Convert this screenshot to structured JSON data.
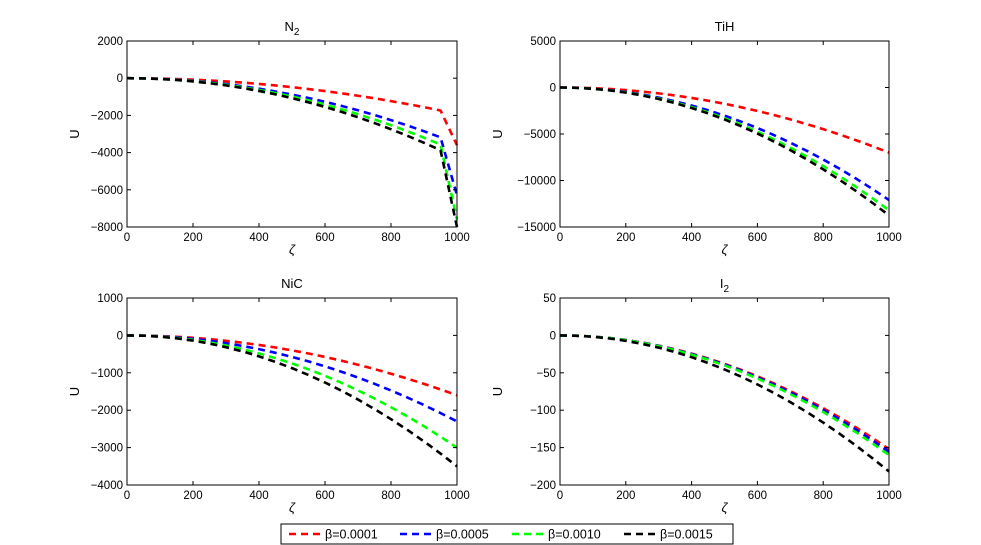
{
  "chart_data": {
    "type": "line",
    "x": [
      0,
      50,
      100,
      150,
      200,
      250,
      300,
      350,
      400,
      450,
      500,
      550,
      600,
      650,
      700,
      750,
      800,
      850,
      900,
      950,
      1000
    ],
    "legend": {
      "entries": [
        {
          "label": "β=0.0001",
          "color": "#ff0000"
        },
        {
          "label": "β=0.0005",
          "color": "#0000ff"
        },
        {
          "label": "β=0.0010",
          "color": "#00ff00"
        },
        {
          "label": "β=0.0015",
          "color": "#000000"
        }
      ],
      "placement": "bottom-center"
    },
    "panels": [
      {
        "title": "N",
        "title_subscript": "2",
        "xlabel": "ζ",
        "ylabel": "U",
        "xlim": [
          0,
          1000
        ],
        "ylim": [
          -8000,
          2000
        ],
        "xticks": [
          0,
          200,
          400,
          600,
          800,
          1000
        ],
        "yticks": [
          2000,
          0,
          -2000,
          -4000,
          -6000,
          -8000
        ],
        "ytick_labels": [
          "2000",
          "0",
          "−2000",
          "−4000",
          "−6000",
          "−8000"
        ],
        "series": [
          {
            "name": "β=0.0001",
            "values": [
              0,
              -5,
              -19,
              -43,
              -77,
              -120,
              -173,
              -236,
              -308,
              -390,
              -481,
              -582,
              -692,
              -813,
              -943,
              -1082,
              -1231,
              -1390,
              -1558,
              -1736,
              -3600
            ]
          },
          {
            "name": "β=0.0005",
            "values": [
              0,
              -9,
              -35,
              -79,
              -141,
              -220,
              -316,
              -432,
              -563,
              -714,
              -881,
              -1064,
              -1267,
              -1487,
              -1725,
              -1980,
              -2254,
              -2545,
              -2852,
              -3178,
              -6300
            ]
          },
          {
            "name": "β=0.0010",
            "values": [
              0,
              -10,
              -39,
              -89,
              -158,
              -247,
              -355,
              -484,
              -632,
              -800,
              -988,
              -1194,
              -1421,
              -1668,
              -1934,
              -2221,
              -2527,
              -2853,
              -3198,
              -3564,
              -7600
            ]
          },
          {
            "name": "β=0.0015",
            "values": [
              0,
              -11,
              -43,
              -97,
              -172,
              -268,
              -386,
              -525,
              -686,
              -868,
              -1072,
              -1297,
              -1543,
              -1811,
              -2100,
              -2411,
              -2744,
              -3097,
              -3472,
              -3869,
              -8000
            ]
          }
        ]
      },
      {
        "title": "TiH",
        "title_subscript": "",
        "xlabel": "ζ",
        "ylabel": "U",
        "xlim": [
          0,
          1000
        ],
        "ylim": [
          -15000,
          5000
        ],
        "xticks": [
          0,
          200,
          400,
          600,
          800,
          1000
        ],
        "yticks": [
          5000,
          0,
          -5000,
          -10000,
          -15000
        ],
        "ytick_labels": [
          "5000",
          "0",
          "−5000",
          "−10000",
          "−15000"
        ],
        "series": [
          {
            "name": "β=0.0001",
            "values": [
              0,
              -17,
              -70,
              -157,
              -280,
              -437,
              -630,
              -857,
              -1120,
              -1417,
              -1750,
              -2117,
              -2520,
              -2957,
              -3430,
              -3937,
              -4480,
              -5057,
              -5670,
              -6317,
              -7000
            ]
          },
          {
            "name": "β=0.0005",
            "values": [
              0,
              -30,
              -121,
              -272,
              -484,
              -756,
              -1089,
              -1482,
              -1936,
              -2450,
              -3025,
              -3660,
              -4356,
              -5112,
              -5929,
              -6806,
              -7744,
              -8742,
              -9801,
              -10920,
              -12100
            ]
          },
          {
            "name": "β=0.0010",
            "values": [
              0,
              -33,
              -132,
              -297,
              -528,
              -825,
              -1188,
              -1617,
              -2112,
              -2673,
              -3300,
              -3993,
              -4752,
              -5577,
              -6468,
              -7425,
              -8448,
              -9537,
              -10692,
              -11913,
              -13200
            ]
          },
          {
            "name": "β=0.0015",
            "values": [
              0,
              -34,
              -137,
              -309,
              -550,
              -859,
              -1237,
              -1684,
              -2200,
              -2784,
              -3437,
              -4159,
              -4950,
              -5809,
              -6737,
              -7734,
              -8800,
              -9934,
              -11137,
              -12409,
              -13750
            ]
          }
        ]
      },
      {
        "title": "NiC",
        "title_subscript": "",
        "xlabel": "ζ",
        "ylabel": "U",
        "xlim": [
          0,
          1000
        ],
        "ylim": [
          -4000,
          1000
        ],
        "xticks": [
          0,
          200,
          400,
          600,
          800,
          1000
        ],
        "yticks": [
          1000,
          0,
          -1000,
          -2000,
          -3000,
          -4000
        ],
        "ytick_labels": [
          "1000",
          "0",
          "−1000",
          "−2000",
          "−3000",
          "−4000"
        ],
        "series": [
          {
            "name": "β=0.0001",
            "values": [
              0,
              -4,
              -16,
              -36,
              -64,
              -100,
              -144,
              -196,
              -256,
              -324,
              -400,
              -484,
              -576,
              -676,
              -784,
              -900,
              -1024,
              -1156,
              -1296,
              -1444,
              -1600
            ]
          },
          {
            "name": "β=0.0005",
            "values": [
              0,
              -6,
              -23,
              -52,
              -92,
              -144,
              -207,
              -282,
              -368,
              -466,
              -575,
              -696,
              -828,
              -972,
              -1127,
              -1294,
              -1472,
              -1662,
              -1863,
              -2076,
              -2300
            ]
          },
          {
            "name": "β=0.0010",
            "values": [
              0,
              -7,
              -30,
              -67,
              -120,
              -187,
              -270,
              -367,
              -480,
              -607,
              -750,
              -907,
              -1080,
              -1267,
              -1470,
              -1687,
              -1920,
              -2167,
              -2430,
              -2707,
              -3000
            ]
          },
          {
            "name": "β=0.0015",
            "values": [
              0,
              -9,
              -35,
              -79,
              -140,
              -219,
              -315,
              -429,
              -560,
              -709,
              -875,
              -1059,
              -1260,
              -1479,
              -1715,
              -1969,
              -2240,
              -2529,
              -2835,
              -3159,
              -3500
            ]
          }
        ]
      },
      {
        "title": "I",
        "title_subscript": "2",
        "xlabel": "ζ",
        "ylabel": "U",
        "xlim": [
          0,
          1000
        ],
        "ylim": [
          -200,
          50
        ],
        "xticks": [
          0,
          200,
          400,
          600,
          800,
          1000
        ],
        "yticks": [
          50,
          0,
          -50,
          -100,
          -150,
          -200
        ],
        "ytick_labels": [
          "50",
          "0",
          "−50",
          "−100",
          "−150",
          "−200"
        ],
        "series": [
          {
            "name": "β=0.0001",
            "values": [
              0,
              -0.4,
              -1.5,
              -3.4,
              -6.1,
              -9.5,
              -13.7,
              -18.6,
              -24.3,
              -30.8,
              -38.0,
              -46.0,
              -54.7,
              -64.2,
              -74.5,
              -85.5,
              -97.3,
              -109.8,
              -123.1,
              -137.2,
              -152
            ]
          },
          {
            "name": "β=0.0005",
            "values": [
              0,
              -0.4,
              -1.6,
              -3.5,
              -6.2,
              -9.7,
              -14.0,
              -19.1,
              -24.9,
              -31.5,
              -38.9,
              -47.1,
              -56.0,
              -65.7,
              -76.2,
              -87.5,
              -99.6,
              -112.4,
              -126.0,
              -140.4,
              -155.6
            ]
          },
          {
            "name": "β=0.0010",
            "values": [
              0,
              -0.4,
              -1.6,
              -3.6,
              -6.4,
              -10.0,
              -14.4,
              -19.6,
              -25.6,
              -32.4,
              -40.0,
              -48.4,
              -57.6,
              -67.6,
              -78.4,
              -90.0,
              -102.4,
              -115.6,
              -129.6,
              -144.4,
              -160
            ]
          },
          {
            "name": "β=0.0015",
            "values": [
              0,
              -0.5,
              -1.8,
              -4.1,
              -7.3,
              -11.4,
              -16.4,
              -22.3,
              -29.1,
              -36.9,
              -45.5,
              -55.1,
              -65.5,
              -76.9,
              -89.2,
              -102.4,
              -116.5,
              -131.5,
              -147.4,
              -164.3,
              -182
            ]
          }
        ]
      }
    ]
  }
}
